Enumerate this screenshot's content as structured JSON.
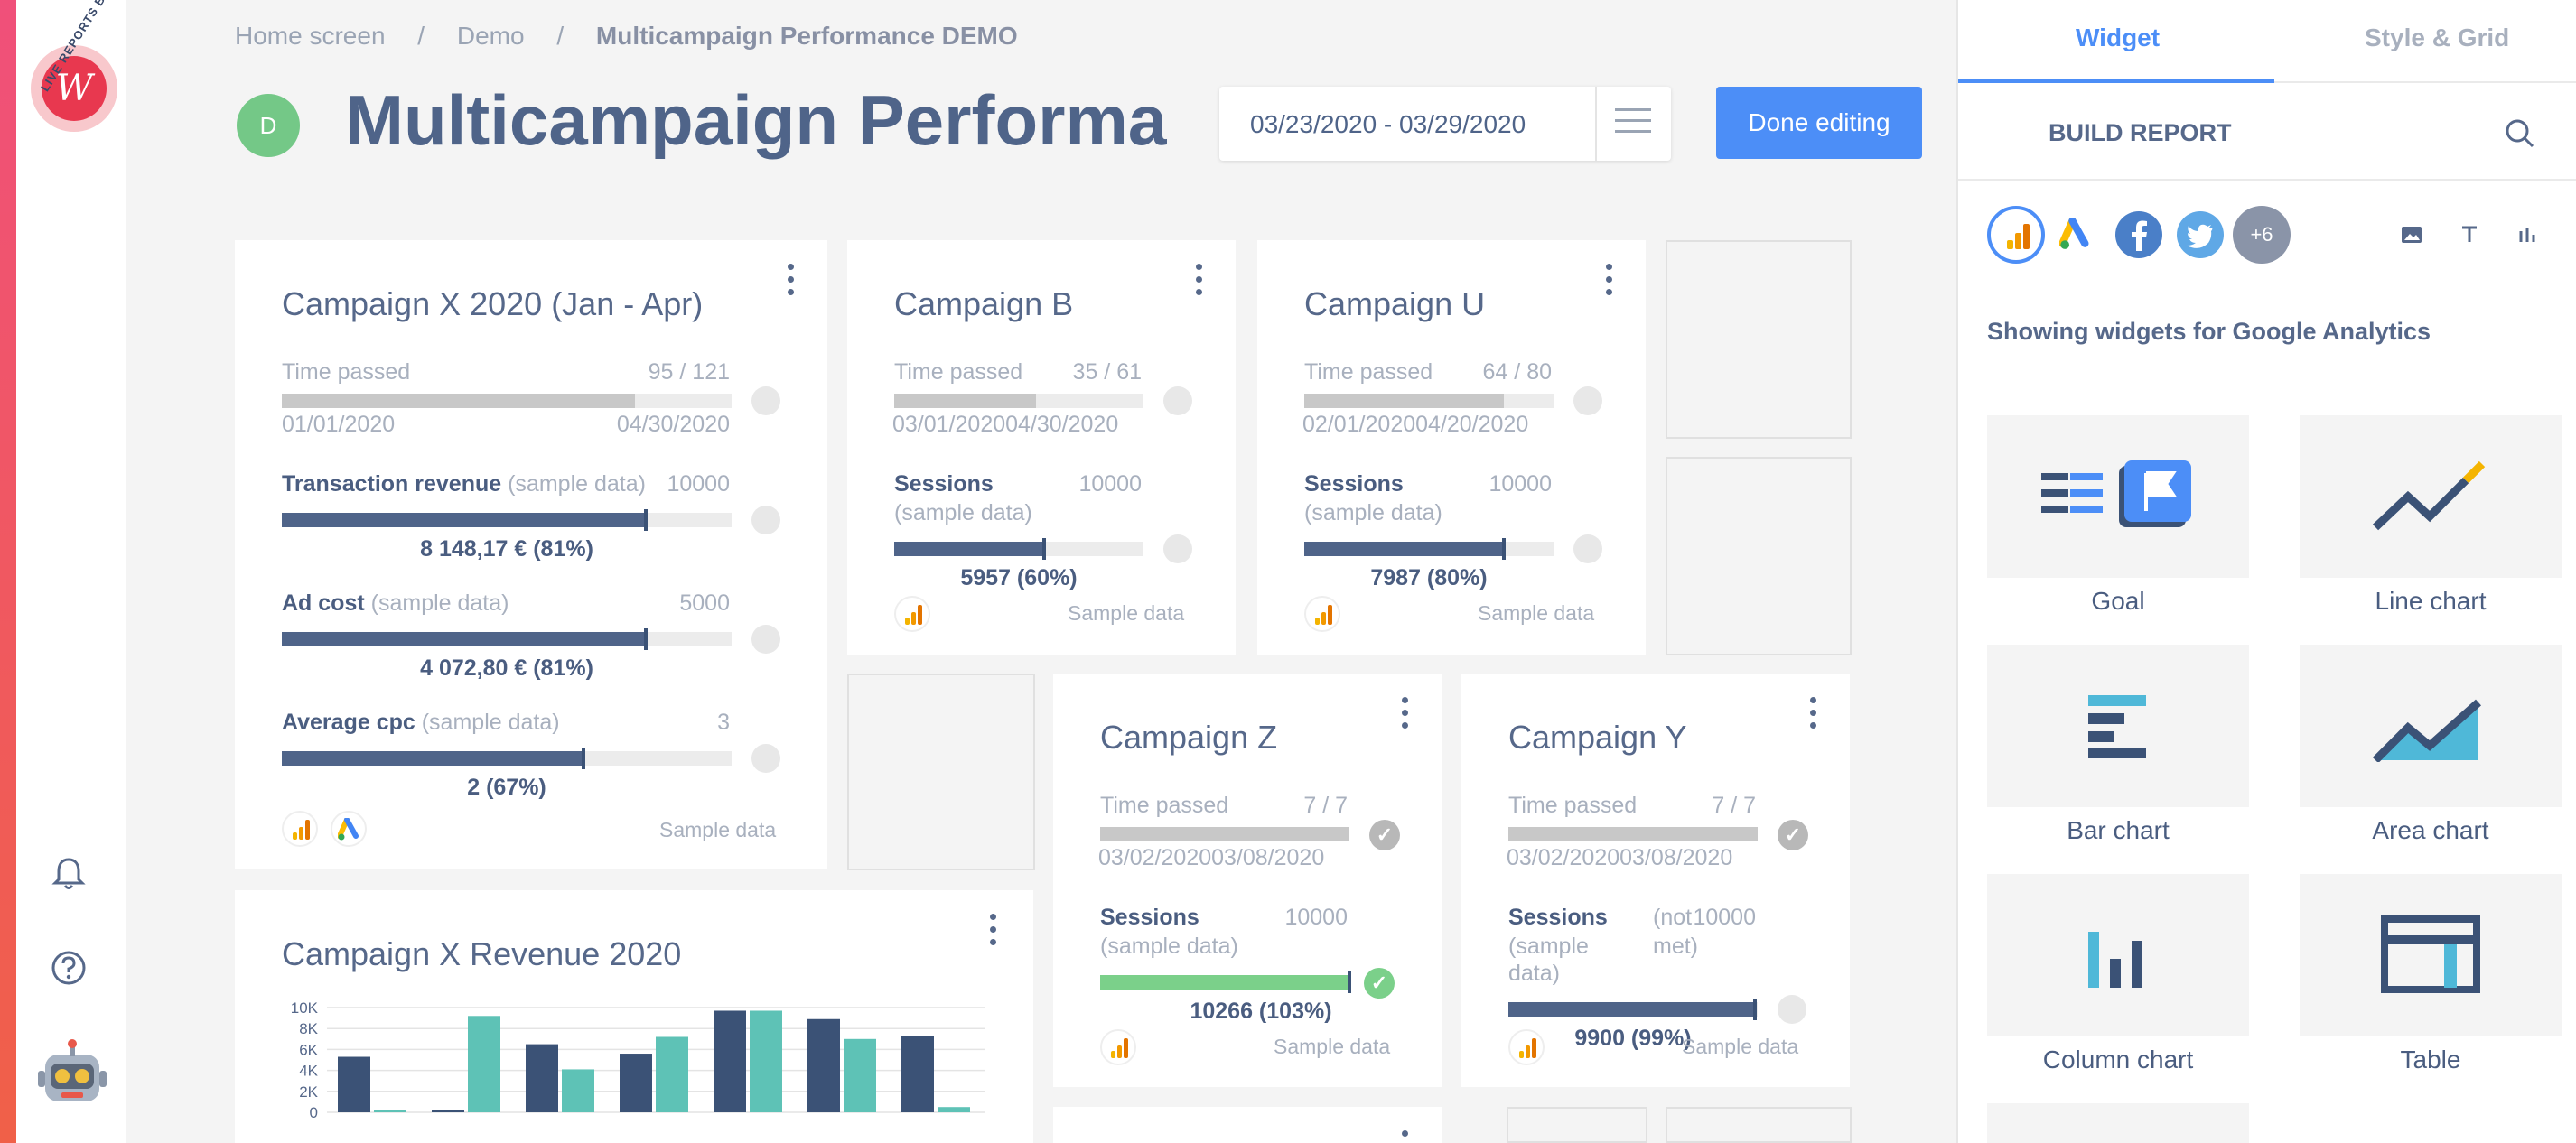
{
  "app": {
    "logo_text": "LIVE REPORTS BETA"
  },
  "breadcrumb": {
    "items": [
      "Home screen",
      "Demo"
    ],
    "separator": "/",
    "current": "Multicampaign Performance DEMO"
  },
  "header": {
    "avatar_letter": "D",
    "title": "Multicampaign Performan…",
    "date_range": "03/23/2020 - 03/29/2020",
    "done_label": "Done editing"
  },
  "colors": {
    "accent": "#4c8ef7",
    "bar_dark": "#4f6489",
    "bar_success": "#7bd08a",
    "bar_time": "#c8c8c8",
    "chart_navy": "#3b5276",
    "chart_teal": "#5ec2b6"
  },
  "cards": {
    "x2020": {
      "title": "Campaign X 2020 (Jan - Apr)",
      "time_label": "Time passed",
      "time_value": "95 / 121",
      "start_date": "01/01/2020",
      "end_date": "04/30/2020",
      "time_progress": 0.785,
      "m1_label": "Transaction revenue",
      "m1_sample": "(sample data)",
      "m1_target": "10000",
      "m1_result": "8 148,17 € (81%)",
      "m1_progress": 0.81,
      "m2_label": "Ad cost",
      "m2_sample": "(sample data)",
      "m2_target": "5000",
      "m2_result": "4 072,80 € (81%)",
      "m2_progress": 0.81,
      "m3_label": "Average cpc",
      "m3_sample": "(sample data)",
      "m3_target": "3",
      "m3_result": "2 (67%)",
      "m3_progress": 0.67,
      "footer": "Sample data"
    },
    "b": {
      "title": "Campaign B",
      "time_label": "Time passed",
      "time_value": "35 / 61",
      "dates": "03/01/202004/30/2020",
      "time_progress": 0.57,
      "metric": "Sessions",
      "sample": "(sample data)",
      "target": "10000",
      "result": "5957 (60%)",
      "progress": 0.6,
      "footer": "Sample data"
    },
    "u": {
      "title": "Campaign U",
      "time_label": "Time passed",
      "time_value": "64 / 80",
      "dates": "02/01/202004/20/2020",
      "time_progress": 0.8,
      "metric": "Sessions",
      "sample": "(sample data)",
      "target": "10000",
      "result": "7987 (80%)",
      "progress": 0.8,
      "footer": "Sample data"
    },
    "z": {
      "title": "Campaign Z",
      "time_label": "Time passed",
      "time_value": "7 / 7",
      "dates": "03/02/202003/08/2020",
      "time_progress": 1.0,
      "metric": "Sessions",
      "sample": "(sample data)",
      "target": "10000",
      "result": "10266 (103%)",
      "progress": 1.0,
      "footer": "Sample data",
      "check": "✓"
    },
    "y": {
      "title": "Campaign Y",
      "time_label": "Time passed",
      "time_value": "7 / 7",
      "dates": "03/02/202003/08/2020",
      "time_progress": 1.0,
      "metric": "Sessions",
      "sample": "(sample",
      "sample2": "data)",
      "not_met": "(not",
      "not_met2": "met)",
      "target": "10000",
      "result": "9900 (99%)",
      "progress": 0.99,
      "footer": "Sample data",
      "check": "✓"
    },
    "revenue": {
      "title": "Campaign X Revenue 2020"
    }
  },
  "chart_data": {
    "type": "bar",
    "title": "Campaign X Revenue 2020",
    "ylim": [
      0,
      10000
    ],
    "ytick_labels": [
      "10K",
      "8K",
      "6K",
      "4K",
      "2K",
      "0"
    ],
    "yticks": [
      10000,
      8000,
      6000,
      4000,
      2000,
      0
    ],
    "grid": true,
    "series": [
      {
        "values": [
          5300,
          200,
          6500,
          5600,
          9700,
          8900,
          7300
        ]
      },
      {
        "values": [
          200,
          9200,
          4100,
          7200,
          9700,
          7000,
          500
        ]
      }
    ]
  },
  "right_panel": {
    "tabs": [
      "Widget",
      "Style & Grid"
    ],
    "build_report": "BUILD REPORT",
    "more_sources": "+6",
    "showing": "Showing widgets for Google Analytics",
    "widgets": [
      "Goal",
      "Line chart",
      "Bar chart",
      "Area chart",
      "Column chart",
      "Table"
    ]
  }
}
